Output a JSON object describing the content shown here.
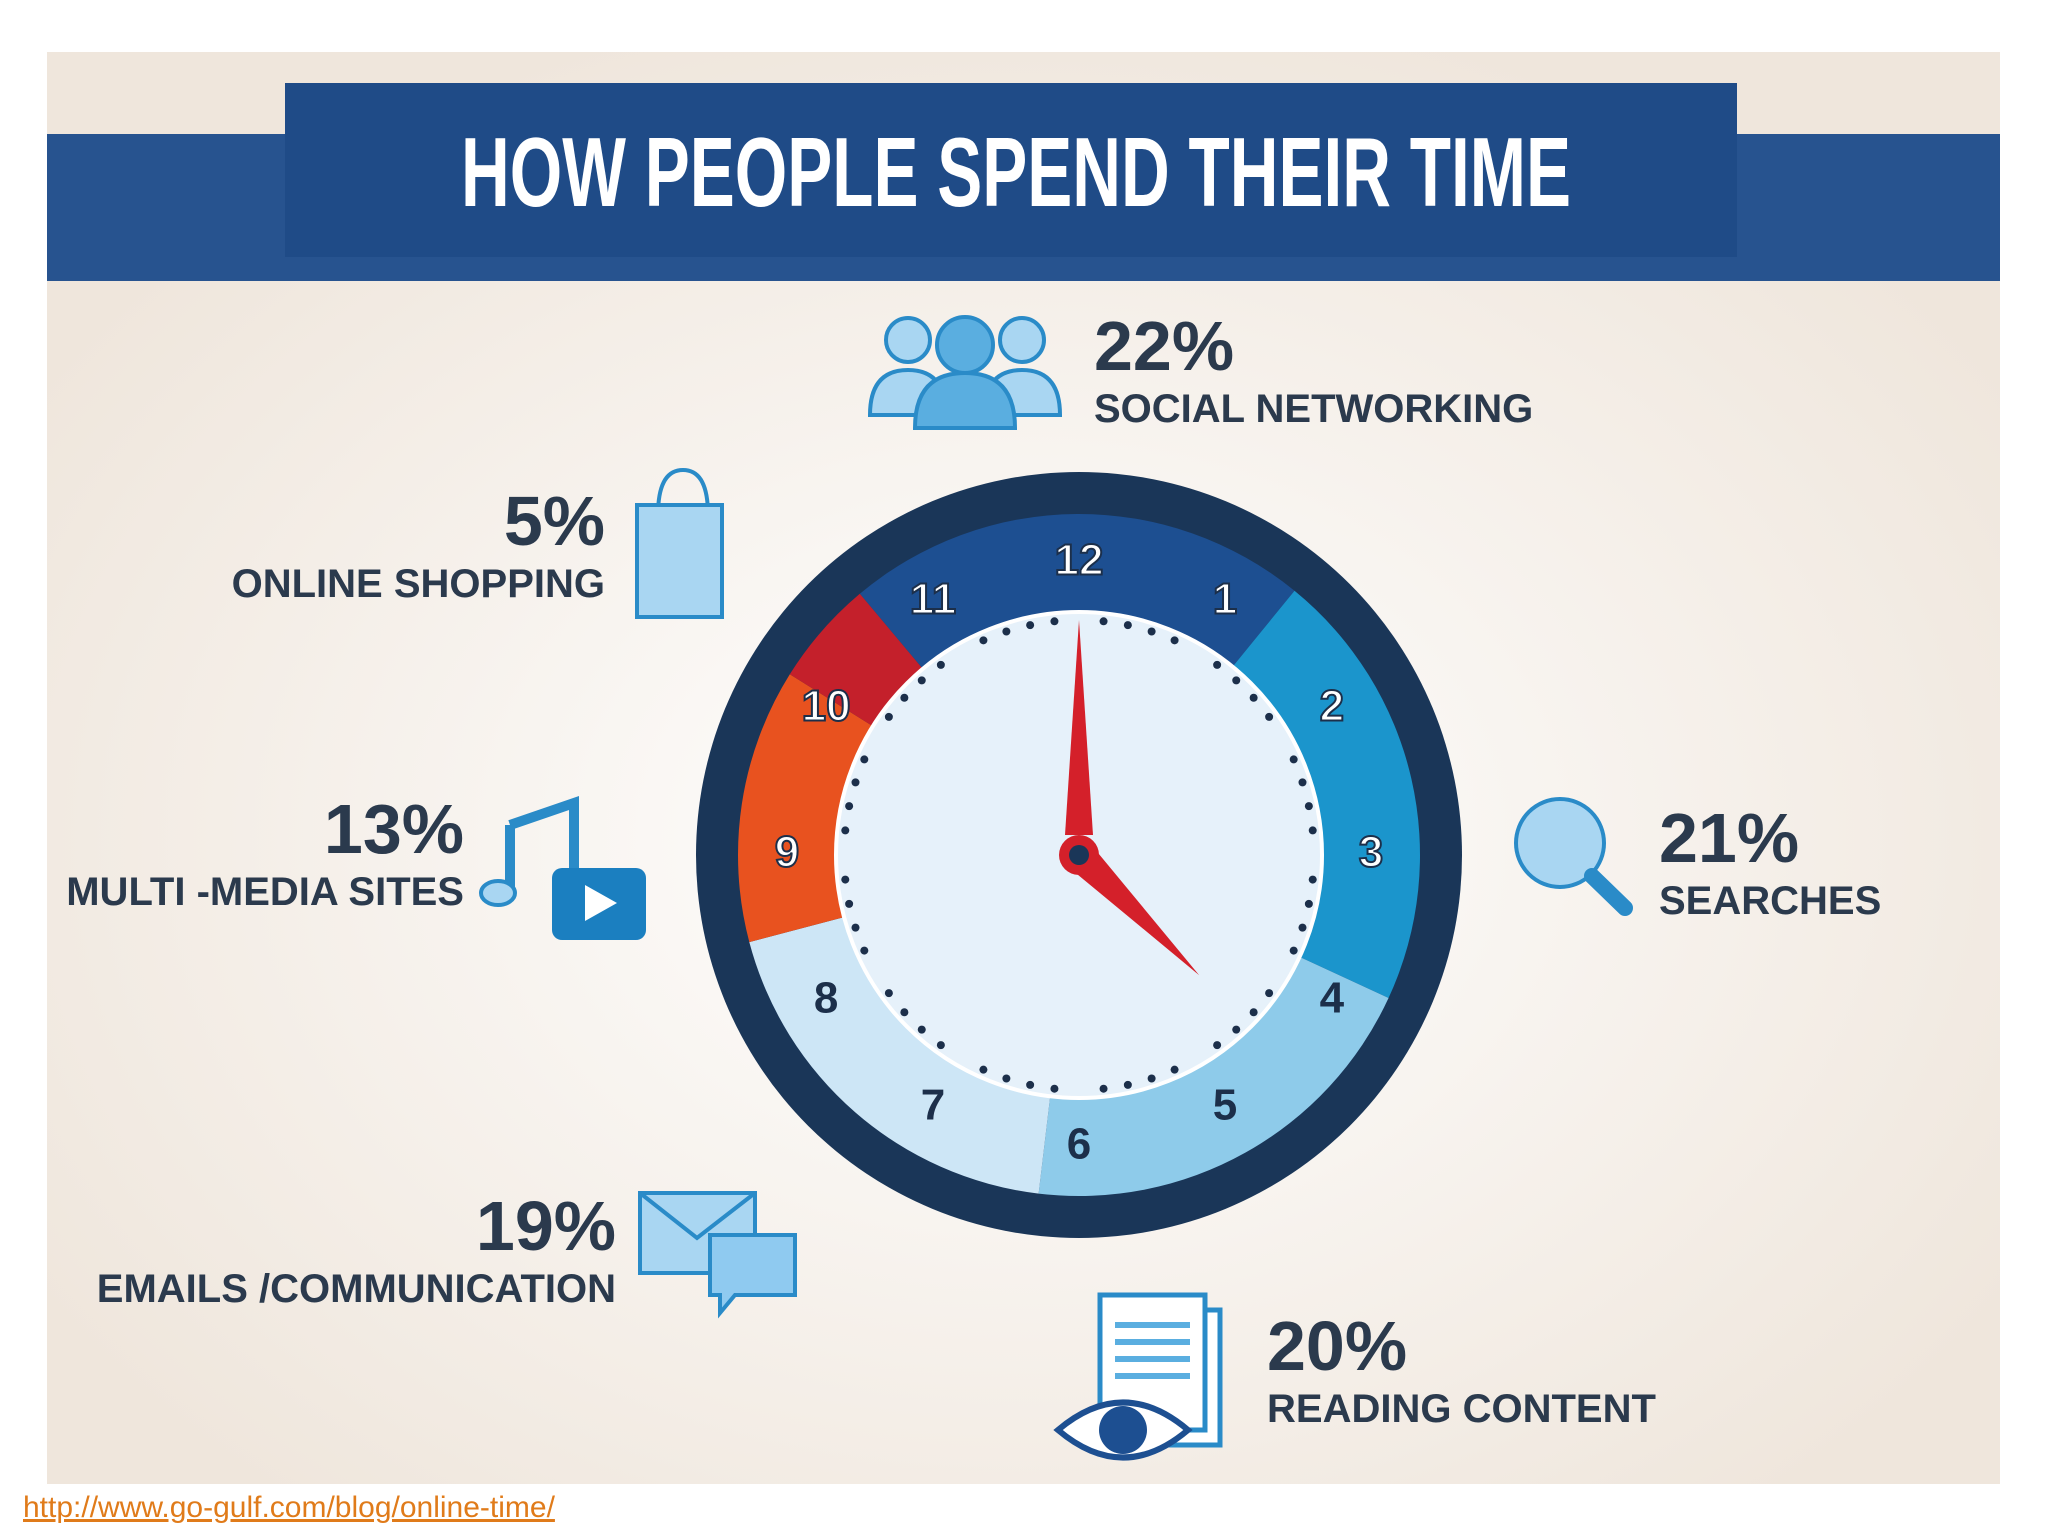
{
  "chart_data": {
    "type": "pie",
    "title": "HOW PEOPLE SPEND THEIR TIME",
    "categories": [
      "SOCIAL NETWORKING",
      "SEARCHES",
      "READING CONTENT",
      "EMAILS /COMMUNICATION",
      "MULTI -MEDIA SITES",
      "ONLINE SHOPPING"
    ],
    "values": [
      22,
      21,
      20,
      19,
      13,
      5
    ],
    "value_labels": [
      "22%",
      "21%",
      "20%",
      "19%",
      "13%",
      "5%"
    ],
    "colors": [
      "#1d4f91",
      "#1b95cc",
      "#8ecbea",
      "#cde6f6",
      "#e8521f",
      "#c4202b"
    ],
    "dial_labels": [
      12,
      1,
      2,
      3,
      4,
      5,
      6,
      7,
      8,
      9,
      10,
      11
    ]
  },
  "source": "http://www.go-gulf.com/blog/online-time/"
}
